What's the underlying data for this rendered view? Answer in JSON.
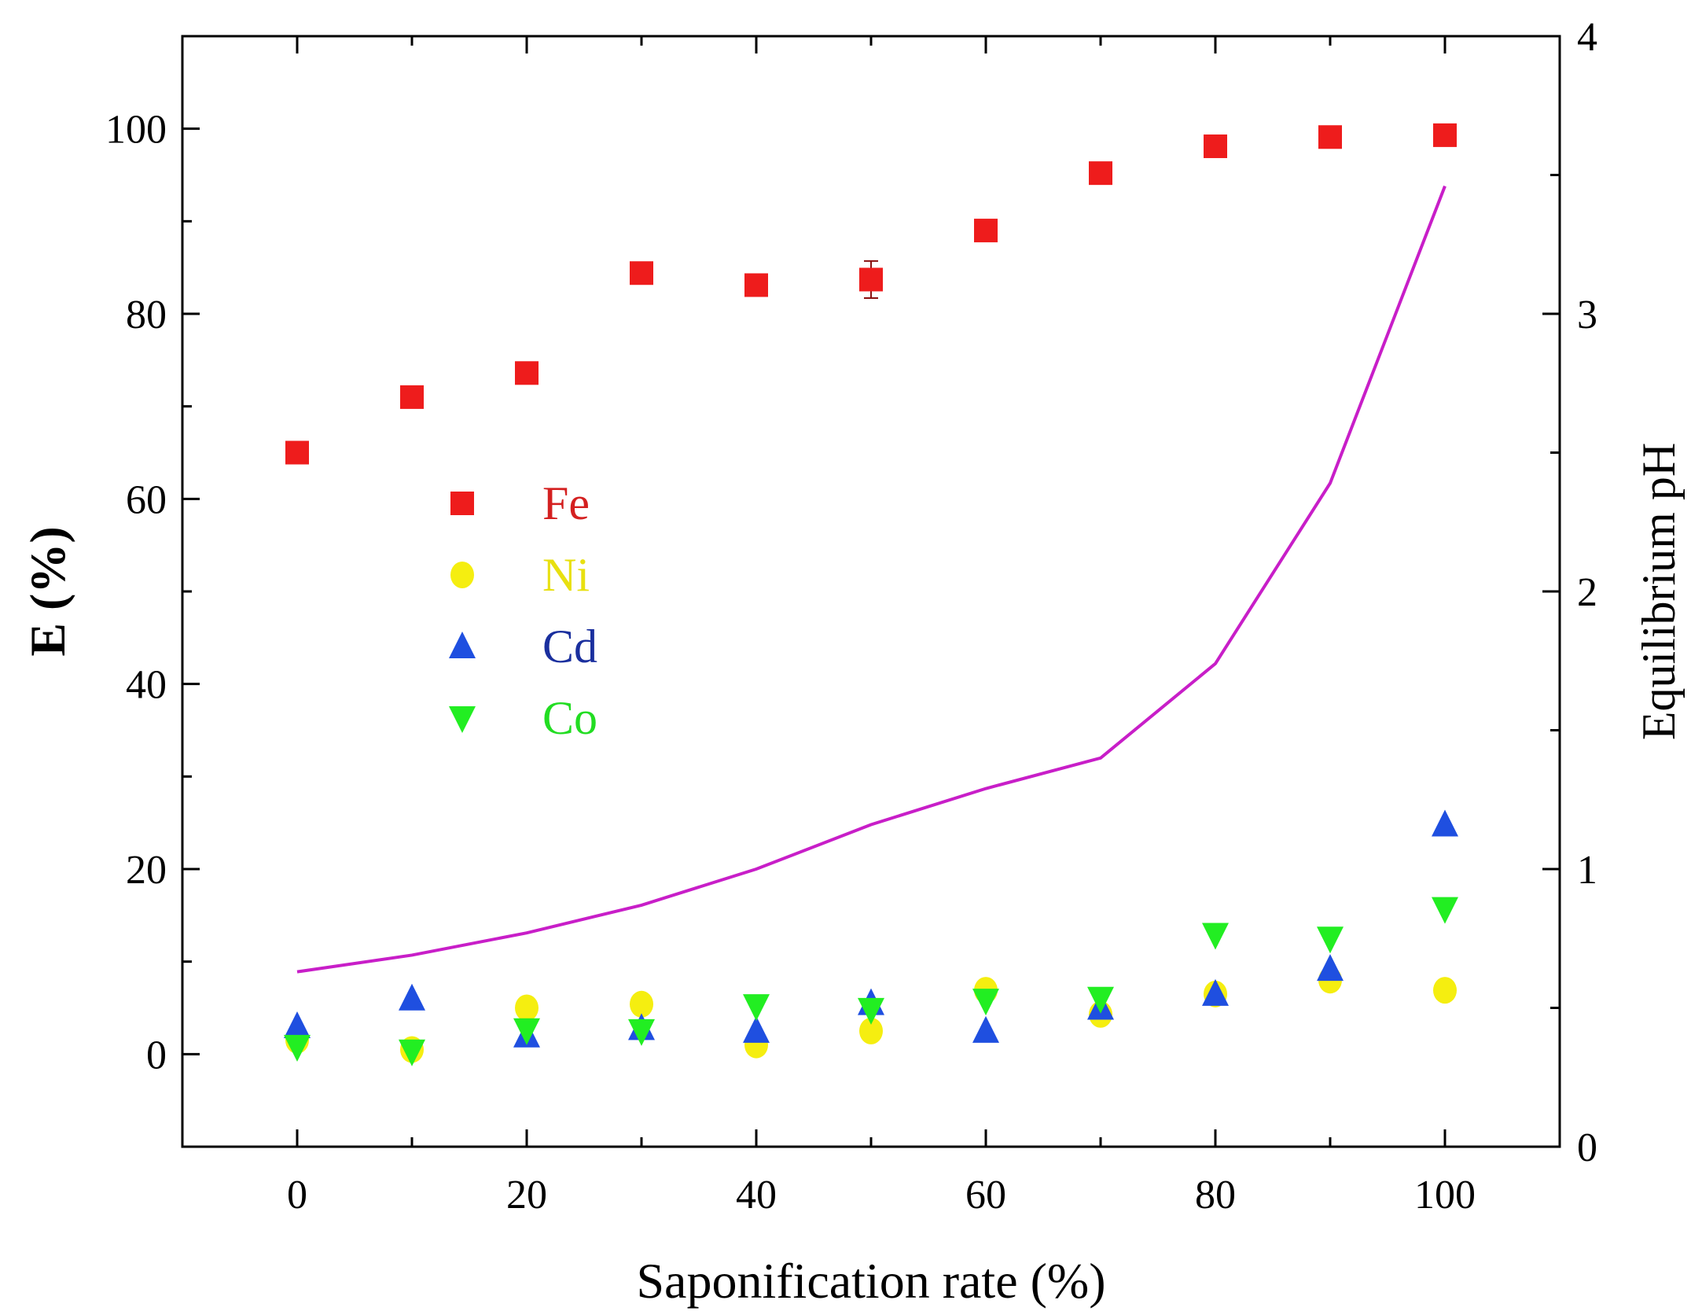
{
  "chart_data": {
    "type": "scatter",
    "title": "",
    "xlabel": "Saponification rate (%)",
    "ylabel": "E (%)",
    "y2label": "Equilibrium pH",
    "xlim": [
      -10,
      110
    ],
    "ylim": [
      -10,
      110
    ],
    "y2lim": [
      0,
      4
    ],
    "xticks": [
      0,
      20,
      40,
      60,
      80,
      100
    ],
    "yticks": [
      0,
      20,
      40,
      60,
      80,
      100
    ],
    "y2ticks": [
      0,
      1,
      2,
      3,
      4
    ],
    "grid": false,
    "legend_position": "center-left",
    "x": [
      0,
      10,
      20,
      30,
      40,
      50,
      60,
      70,
      80,
      90,
      100
    ],
    "series": [
      {
        "name": "Fe",
        "marker": "square",
        "color": "#ee1c1c",
        "label_color": "#d42020",
        "axis": "left",
        "values": [
          65.0,
          71.0,
          73.6,
          84.4,
          83.1,
          83.7,
          89.0,
          95.2,
          98.1,
          99.1,
          99.3
        ],
        "errors": [
          0.5,
          0.5,
          0.5,
          0.5,
          0.5,
          2.0,
          1.0,
          0.5,
          0.5,
          0.5,
          0.5
        ]
      },
      {
        "name": "Ni",
        "marker": "circle",
        "color": "#f5ee10",
        "label_color": "#e8e010",
        "axis": "left",
        "values": [
          1.5,
          0.5,
          5.0,
          5.4,
          1.0,
          2.5,
          6.9,
          4.3,
          6.5,
          8.0,
          6.9
        ]
      },
      {
        "name": "Cd",
        "marker": "triangle-up",
        "color": "#1f4fe0",
        "label_color": "#1a2f9e",
        "axis": "left",
        "values": [
          3.0,
          6.0,
          2.0,
          2.8,
          2.5,
          5.5,
          2.5,
          5.0,
          6.5,
          9.2,
          24.8
        ]
      },
      {
        "name": "Co",
        "marker": "triangle-down",
        "color": "#22ee22",
        "label_color": "#22dd22",
        "axis": "left",
        "values": [
          0.8,
          0.3,
          2.6,
          2.5,
          5.2,
          4.8,
          5.8,
          6.0,
          12.9,
          12.5,
          15.7
        ]
      },
      {
        "name": "Equilibrium pH",
        "marker": "line",
        "color": "#c81ec8",
        "axis": "right",
        "values": [
          0.63,
          0.69,
          0.77,
          0.87,
          1.0,
          1.16,
          1.29,
          1.4,
          1.74,
          2.39,
          3.46
        ]
      }
    ]
  }
}
